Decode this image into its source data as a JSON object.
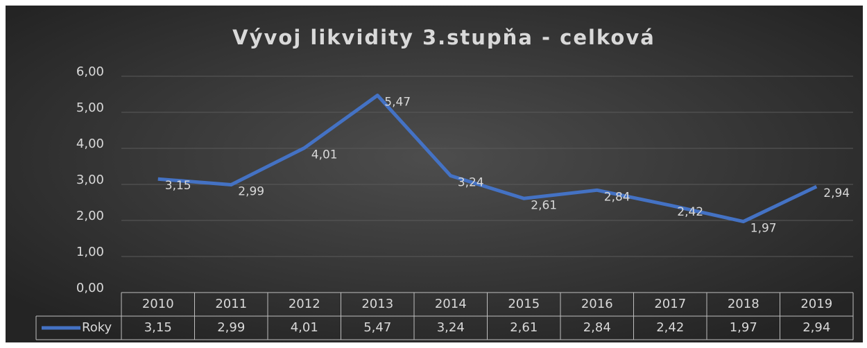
{
  "chart_data": {
    "type": "line",
    "title": "Vývoj likvidity 3.stupňa - celková",
    "categories": [
      "2010",
      "2011",
      "2012",
      "2013",
      "2014",
      "2015",
      "2016",
      "2017",
      "2018",
      "2019"
    ],
    "series": [
      {
        "name": "Roky",
        "color": "#4472c4",
        "values": [
          3.15,
          2.99,
          4.01,
          5.47,
          3.24,
          2.61,
          2.84,
          2.42,
          1.97,
          2.94
        ],
        "value_labels": [
          "3,15",
          "2,99",
          "4,01",
          "5,47",
          "3,24",
          "2,61",
          "2,84",
          "2,42",
          "1,97",
          "2,94"
        ]
      }
    ],
    "ylim": [
      0,
      6
    ],
    "yticks": [
      {
        "value": 0,
        "label": "0,00"
      },
      {
        "value": 1,
        "label": "1,00"
      },
      {
        "value": 2,
        "label": "2,00"
      },
      {
        "value": 3,
        "label": "3,00"
      },
      {
        "value": 4,
        "label": "4,00"
      },
      {
        "value": 5,
        "label": "5,00"
      },
      {
        "value": 6,
        "label": "6,00"
      }
    ],
    "grid": true
  }
}
